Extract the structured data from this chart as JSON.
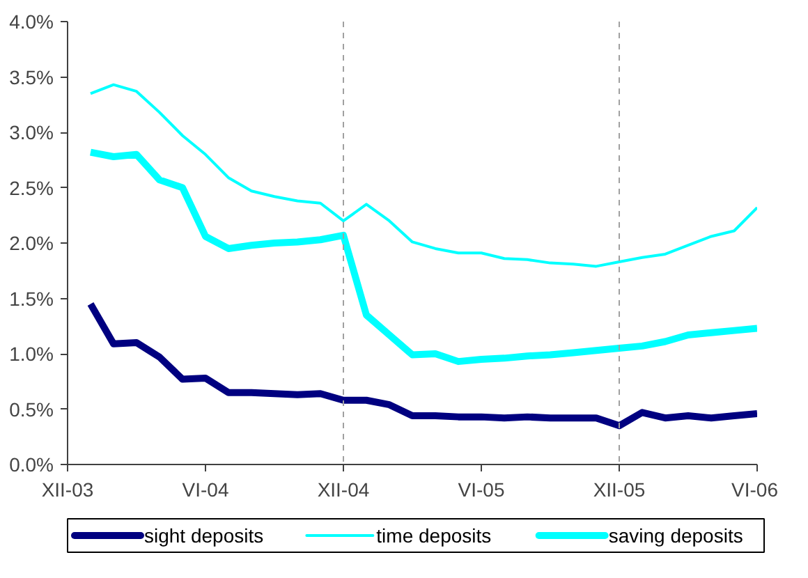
{
  "chart_data": {
    "type": "line",
    "x": [
      "2004-01",
      "2004-02",
      "2004-03",
      "2004-04",
      "2004-05",
      "2004-06",
      "2004-07",
      "2004-08",
      "2004-09",
      "2004-10",
      "2004-11",
      "2004-12",
      "2005-01",
      "2005-02",
      "2005-03",
      "2005-04",
      "2005-05",
      "2005-06",
      "2005-07",
      "2005-08",
      "2005-09",
      "2005-10",
      "2005-11",
      "2005-12",
      "2006-01",
      "2006-02",
      "2006-03",
      "2006-04",
      "2006-05",
      "2006-06"
    ],
    "series": [
      {
        "name": "sight deposits",
        "color": "#000080",
        "values": [
          1.45,
          1.09,
          1.1,
          0.97,
          0.77,
          0.78,
          0.65,
          0.65,
          0.64,
          0.63,
          0.64,
          0.58,
          0.58,
          0.54,
          0.44,
          0.44,
          0.43,
          0.43,
          0.42,
          0.43,
          0.42,
          0.42,
          0.42,
          0.35,
          0.47,
          0.42,
          0.44,
          0.42,
          0.44,
          0.46
        ]
      },
      {
        "name": "time deposits",
        "color": "#00ffff",
        "values": [
          3.35,
          3.43,
          3.37,
          3.18,
          2.97,
          2.8,
          2.59,
          2.47,
          2.42,
          2.38,
          2.36,
          2.2,
          2.35,
          2.2,
          2.01,
          1.95,
          1.91,
          1.91,
          1.86,
          1.85,
          1.82,
          1.81,
          1.79,
          1.83,
          1.87,
          1.9,
          1.98,
          2.06,
          2.11,
          2.32
        ]
      },
      {
        "name": "saving deposits",
        "color": "#00ffff",
        "values": [
          2.82,
          2.78,
          2.8,
          2.57,
          2.5,
          2.06,
          1.95,
          1.98,
          2.0,
          2.01,
          2.03,
          2.07,
          1.35,
          1.17,
          0.99,
          1.0,
          0.93,
          0.95,
          0.96,
          0.98,
          0.99,
          1.01,
          1.03,
          1.05,
          1.07,
          1.11,
          1.17,
          1.19,
          1.21,
          1.23
        ]
      }
    ],
    "xlim": [
      "2003-12",
      "2006-06"
    ],
    "xticks": [
      {
        "value": "2003-12",
        "label": "XII-03"
      },
      {
        "value": "2004-06",
        "label": "VI-04"
      },
      {
        "value": "2004-12",
        "label": "XII-04"
      },
      {
        "value": "2005-06",
        "label": "VI-05"
      },
      {
        "value": "2005-12",
        "label": "XII-05"
      },
      {
        "value": "2006-06",
        "label": "VI-06"
      }
    ],
    "ylim": [
      0,
      4
    ],
    "yticks": [
      {
        "value": 0,
        "label": "0.0%"
      },
      {
        "value": 0.5,
        "label": "0.5%"
      },
      {
        "value": 1,
        "label": "1.0%"
      },
      {
        "value": 1.5,
        "label": "1.5%"
      },
      {
        "value": 2,
        "label": "2.0%"
      },
      {
        "value": 2.5,
        "label": "2.5%"
      },
      {
        "value": 3,
        "label": "3.0%"
      },
      {
        "value": 3.5,
        "label": "3.5%"
      },
      {
        "value": 4,
        "label": "4.0%"
      }
    ],
    "ref_lines": [
      {
        "axis": "x",
        "value": "2004-12",
        "color": "#a0a0a0",
        "line_style": "dashed"
      },
      {
        "axis": "x",
        "value": "2005-12",
        "color": "#a0a0a0",
        "line_style": "dashed"
      }
    ],
    "grid": false,
    "legend": "bottom",
    "marker": "none",
    "line_style": "solid"
  }
}
